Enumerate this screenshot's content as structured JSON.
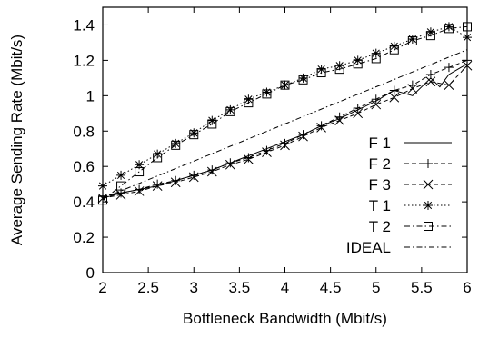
{
  "chart_data": {
    "type": "line",
    "title": "",
    "xlabel": "Bottleneck Bandwidth (Mbit/s)",
    "ylabel": "Average Sending Rate (Mbit/s)",
    "xlim": [
      2,
      6
    ],
    "ylim": [
      0,
      1.5
    ],
    "xticks": [
      "2",
      "2.5",
      "3",
      "3.5",
      "4",
      "4.5",
      "5",
      "5.5",
      "6"
    ],
    "yticks": [
      "0",
      "0.2",
      "0.4",
      "0.6",
      "0.8",
      "1",
      "1.2",
      "1.4"
    ],
    "grid": false,
    "legend_position": "right-middle",
    "series": [
      {
        "name": "F 1",
        "style": "solid",
        "marker": "none",
        "x": [
          2.0,
          2.2,
          2.4,
          2.6,
          2.8,
          3.0,
          3.2,
          3.4,
          3.6,
          3.8,
          4.0,
          4.2,
          4.4,
          4.6,
          4.8,
          5.0,
          5.2,
          5.4,
          5.6,
          5.7,
          5.8,
          5.9,
          6.0
        ],
        "y": [
          0.42,
          0.45,
          0.47,
          0.49,
          0.52,
          0.55,
          0.58,
          0.62,
          0.66,
          0.7,
          0.74,
          0.78,
          0.83,
          0.87,
          0.92,
          0.97,
          1.03,
          1.0,
          1.1,
          1.05,
          1.12,
          1.15,
          1.18
        ]
      },
      {
        "name": "F 2",
        "style": "dashed",
        "marker": "plus",
        "x": [
          2.0,
          2.2,
          2.4,
          2.6,
          2.8,
          3.0,
          3.2,
          3.4,
          3.6,
          3.8,
          4.0,
          4.2,
          4.4,
          4.6,
          4.8,
          5.0,
          5.2,
          5.4,
          5.6,
          5.8,
          6.0
        ],
        "y": [
          0.43,
          0.45,
          0.47,
          0.5,
          0.52,
          0.55,
          0.58,
          0.62,
          0.65,
          0.69,
          0.73,
          0.78,
          0.83,
          0.88,
          0.93,
          0.98,
          1.03,
          1.06,
          1.12,
          1.16,
          1.2
        ]
      },
      {
        "name": "F 3",
        "style": "dashed",
        "marker": "x",
        "x": [
          2.0,
          2.2,
          2.4,
          2.6,
          2.8,
          3.0,
          3.2,
          3.4,
          3.6,
          3.8,
          4.0,
          4.2,
          4.4,
          4.6,
          4.8,
          5.0,
          5.2,
          5.4,
          5.6,
          5.8,
          6.0
        ],
        "y": [
          0.42,
          0.44,
          0.46,
          0.49,
          0.51,
          0.54,
          0.57,
          0.61,
          0.64,
          0.68,
          0.72,
          0.77,
          0.82,
          0.86,
          0.9,
          0.95,
          0.99,
          1.04,
          1.08,
          1.06,
          1.17
        ]
      },
      {
        "name": "T 1",
        "style": "dotted",
        "marker": "star",
        "x": [
          2.0,
          2.2,
          2.4,
          2.6,
          2.8,
          3.0,
          3.2,
          3.4,
          3.6,
          3.8,
          4.0,
          4.2,
          4.4,
          4.6,
          4.8,
          5.0,
          5.2,
          5.4,
          5.6,
          5.8,
          6.0
        ],
        "y": [
          0.49,
          0.55,
          0.61,
          0.67,
          0.73,
          0.79,
          0.86,
          0.92,
          0.98,
          1.02,
          1.06,
          1.1,
          1.15,
          1.17,
          1.2,
          1.24,
          1.28,
          1.32,
          1.36,
          1.39,
          1.33
        ]
      },
      {
        "name": "T 2",
        "style": "dashdot",
        "marker": "square",
        "x": [
          2.0,
          2.2,
          2.4,
          2.6,
          2.8,
          3.0,
          3.2,
          3.4,
          3.6,
          3.8,
          4.0,
          4.2,
          4.4,
          4.6,
          4.8,
          5.0,
          5.2,
          5.4,
          5.6,
          5.8,
          6.0
        ],
        "y": [
          0.41,
          0.49,
          0.57,
          0.65,
          0.72,
          0.78,
          0.84,
          0.91,
          0.96,
          1.01,
          1.06,
          1.09,
          1.13,
          1.15,
          1.18,
          1.21,
          1.26,
          1.31,
          1.34,
          1.38,
          1.39
        ]
      },
      {
        "name": "IDEAL",
        "style": "dashdot",
        "marker": "none",
        "x": [
          2.0,
          6.0
        ],
        "y": [
          0.42,
          1.26
        ]
      }
    ]
  }
}
